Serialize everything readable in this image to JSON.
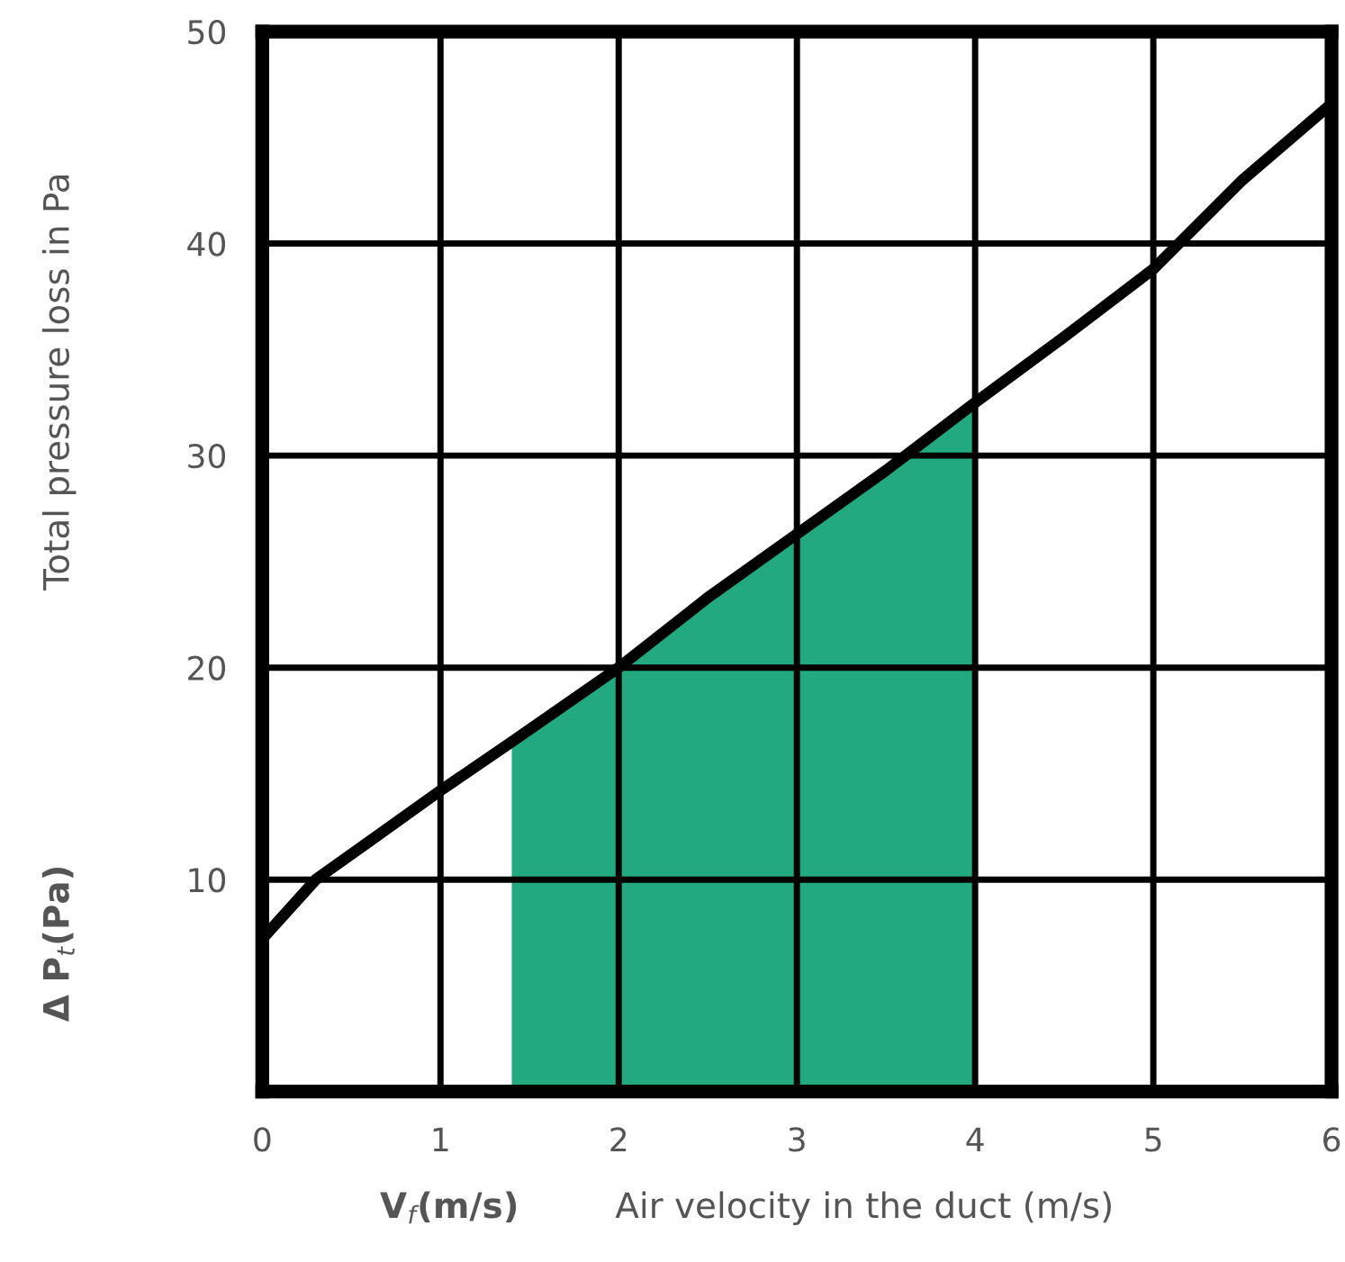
{
  "chart_data": {
    "type": "line",
    "xlabel": "V$_{f}$(m/s)",
    "ylabel": "Δ P$_{t}$(Pa)",
    "annotations": [
      "Air velocity in the duct (m/s)",
      "Total pressure loss in Pa"
    ],
    "series": [
      {
        "type": "area",
        "color": "#22a97f",
        "x": [
          1.4,
          2,
          2.5,
          3,
          3.5,
          4
        ],
        "values": [
          16.5,
          20.0,
          23.3,
          26.3,
          29.3,
          32.5
        ]
      },
      {
        "color": "#000000",
        "x": [
          0,
          0.3,
          0.6,
          1,
          1.4,
          2,
          2.5,
          3,
          3.5,
          4,
          4.5,
          5,
          5.5,
          6
        ],
        "values": [
          7.2,
          10.0,
          11.8,
          14.2,
          16.5,
          20.0,
          23.3,
          26.3,
          29.3,
          32.5,
          35.6,
          38.8,
          43.0,
          46.6
        ]
      }
    ],
    "xlim": [
      0,
      6
    ],
    "ylim": [
      0,
      50
    ],
    "xticks": [
      0,
      1,
      2,
      3,
      4,
      5,
      6
    ],
    "yticks": [
      10,
      20,
      30,
      40,
      50
    ],
    "grid": true
  }
}
